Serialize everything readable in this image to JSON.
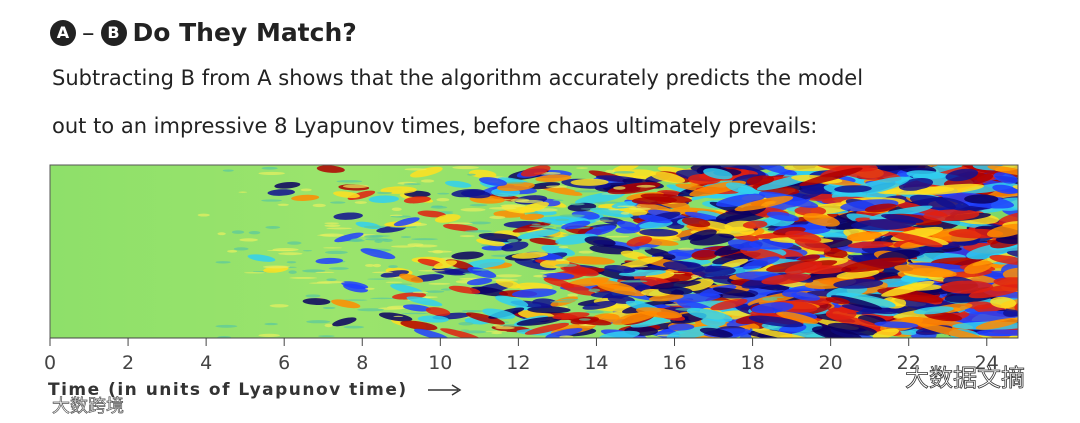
{
  "header": {
    "badge_a": "A",
    "badge_b": "B",
    "title": "Do They Match?"
  },
  "description": [
    "Subtracting B from A shows that the algorithm accurately predicts the model",
    "out to an impressive 8 Lyapunov times, before chaos ultimately prevails:"
  ],
  "chart_data": {
    "type": "heatmap",
    "x_label": "Time (in units of Lyapunov time)",
    "xlim": [
      0,
      24.8
    ],
    "xticks": [
      0,
      2,
      4,
      6,
      8,
      10,
      12,
      14,
      16,
      18,
      20,
      22,
      24
    ]
  },
  "watermarks": [
    "大数据文摘",
    "大数跨境"
  ]
}
